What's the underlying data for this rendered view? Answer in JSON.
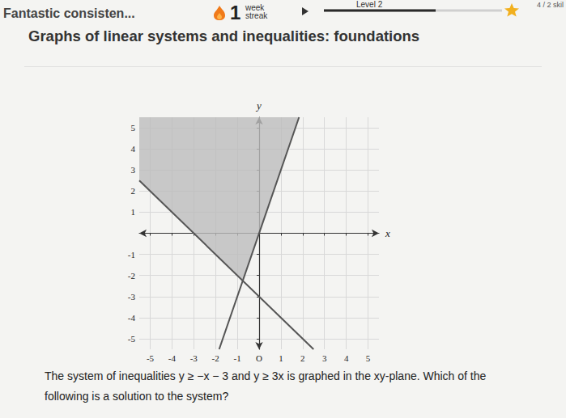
{
  "header": {
    "title": "Fantastic consisten...",
    "streak_number": "1",
    "streak_unit": [
      "week",
      "streak"
    ],
    "level": "Level 2",
    "skills": "4 / 2 skil"
  },
  "heading": "Graphs of linear systems and inequalities: foundations",
  "chart_data": {
    "type": "line",
    "x_label": "x",
    "y_label": "y",
    "xlim": [
      -5.5,
      5.5
    ],
    "ylim": [
      -5.5,
      5.5
    ],
    "xticks": [
      -5,
      -4,
      -3,
      -2,
      -1,
      {
        "value": 0,
        "label": "O"
      },
      1,
      2,
      3,
      4,
      5
    ],
    "yticks": [
      -5,
      -4,
      -3,
      -2,
      -1,
      1,
      2,
      3,
      4,
      5
    ],
    "grid": true,
    "series": [
      {
        "x": [
          -5.5,
          2.5
        ],
        "values": [
          2.5,
          -5.5
        ],
        "color": "#555555"
      },
      {
        "x": [
          -1.8333,
          1.8333
        ],
        "values": [
          -5.5,
          5.5
        ],
        "color": "#555555"
      }
    ],
    "region": {
      "x": [
        -5.5,
        -0.75,
        1.8333,
        -5.5
      ],
      "values": [
        2.5,
        -2.25,
        5.5,
        5.5
      ],
      "color": "#bdbdbd"
    }
  },
  "question": "The system of inequalities y ≥ −x − 3 and y ≥ 3x is graphed in the xy-plane. Which of the following is a solution to the system?"
}
